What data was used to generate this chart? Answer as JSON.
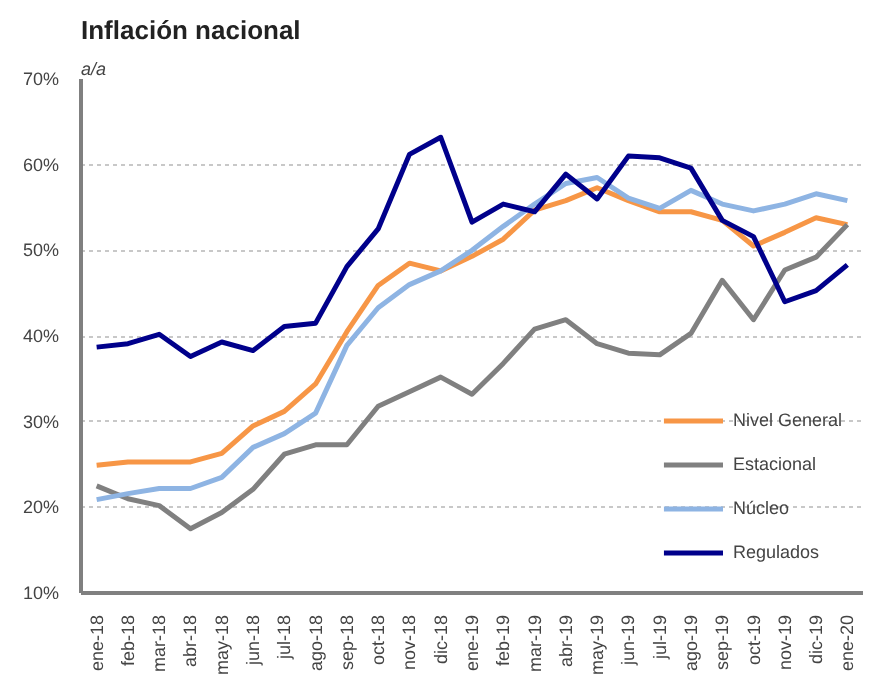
{
  "chart_data": {
    "type": "line",
    "title": "Inflación nacional",
    "subtitle": "a/a",
    "categories": [
      "ene-18",
      "feb-18",
      "mar-18",
      "abr-18",
      "may-18",
      "jun-18",
      "jul-18",
      "ago-18",
      "sep-18",
      "oct-18",
      "nov-18",
      "dic-18",
      "ene-19",
      "feb-19",
      "mar-19",
      "abr-19",
      "may-19",
      "jun-19",
      "jul-19",
      "ago-19",
      "sep-19",
      "oct-19",
      "nov-19",
      "dic-19",
      "ene-20"
    ],
    "series": [
      {
        "name": "Nivel General",
        "color": "#f79646",
        "values": [
          24.9,
          25.3,
          25.3,
          25.3,
          26.3,
          29.5,
          31.2,
          34.4,
          40.5,
          45.9,
          48.5,
          47.6,
          49.3,
          51.3,
          54.7,
          55.8,
          57.3,
          55.8,
          54.5,
          54.5,
          53.5,
          50.5,
          52.1,
          53.8,
          53.0
        ]
      },
      {
        "name": "Estacional",
        "color": "#808080",
        "values": [
          22.5,
          21.0,
          20.2,
          17.5,
          19.4,
          22.1,
          26.2,
          27.3,
          27.3,
          31.8,
          33.5,
          35.2,
          33.2,
          36.8,
          40.8,
          41.9,
          39.1,
          38.0,
          37.8,
          40.3,
          46.5,
          41.9,
          47.7,
          49.2,
          53.0
        ]
      },
      {
        "name": "Núcleo",
        "color": "#8eb4e3",
        "values": [
          20.9,
          21.6,
          22.2,
          22.2,
          23.5,
          27.0,
          28.6,
          31.0,
          38.9,
          43.3,
          46.0,
          47.6,
          50.0,
          52.8,
          55.4,
          57.8,
          58.5,
          56.1,
          54.9,
          57.0,
          55.4,
          54.6,
          55.4,
          56.6,
          55.8
        ]
      },
      {
        "name": "Regulados",
        "color": "#00008b",
        "values": [
          38.7,
          39.1,
          40.2,
          37.6,
          39.3,
          38.3,
          41.1,
          41.5,
          48.1,
          52.5,
          61.2,
          63.2,
          53.3,
          55.4,
          54.5,
          58.9,
          56.0,
          61.0,
          60.8,
          59.6,
          53.5,
          51.6,
          44.0,
          45.3,
          48.3
        ]
      }
    ],
    "ylim": [
      10,
      70
    ],
    "yticks": [
      {
        "value": 10,
        "label": "10%"
      },
      {
        "value": 20,
        "label": "20%"
      },
      {
        "value": 30,
        "label": "30%"
      },
      {
        "value": 40,
        "label": "40%"
      },
      {
        "value": 50,
        "label": "50%"
      },
      {
        "value": 60,
        "label": "60%"
      },
      {
        "value": 70,
        "label": "70%"
      }
    ],
    "grid": "y",
    "legend": "bottom right",
    "line_style": "solid",
    "marker": "none"
  }
}
